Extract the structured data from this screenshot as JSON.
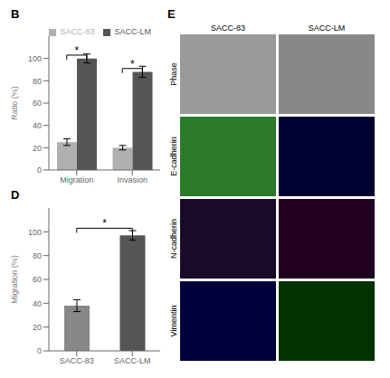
{
  "chart_data": [
    {
      "type": "bar",
      "title": "B",
      "categories": [
        "Migration",
        "Invasion"
      ],
      "series": [
        {
          "name": "SACC-83",
          "color": "#b0b0b0",
          "values": [
            25,
            20
          ],
          "errors": [
            3,
            2
          ]
        },
        {
          "name": "SACC-LM",
          "color": "#555555",
          "values": [
            100,
            88
          ],
          "errors": [
            4,
            5
          ]
        }
      ],
      "ylabel": "Ratio (%)",
      "ylim": [
        0,
        120
      ],
      "yticks": [
        0,
        20,
        40,
        60,
        80,
        100
      ],
      "legend": "upper right",
      "grid": false,
      "annotations": [
        {
          "text": "*",
          "category": "Migration",
          "y": 103
        },
        {
          "text": "*",
          "category": "Invasion",
          "y": 91
        }
      ]
    },
    {
      "type": "bar",
      "title": "D",
      "categories": [
        "SACC-83",
        "SACC-LM"
      ],
      "values": [
        38,
        97
      ],
      "errors": [
        5,
        4
      ],
      "colors": [
        "#888888",
        "#555555"
      ],
      "ylabel": "Migration (%)",
      "ylim": [
        0,
        120
      ],
      "yticks": [
        0,
        20,
        40,
        60,
        80,
        100
      ],
      "grid": false,
      "annotations": [
        {
          "text": "*",
          "from": "SACC-83",
          "to": "SACC-LM",
          "y": 103
        }
      ]
    },
    {
      "type": "image_grid",
      "title": "E",
      "row_labels": [
        "Phase",
        "E-cadherin",
        "N-cadherin",
        "Vimentin"
      ],
      "col_labels": [
        "SACC-83",
        "SACC-LM"
      ],
      "colors": [
        [
          "#9a9a9a",
          "#888888"
        ],
        [
          "#2a7a2a",
          "#000033"
        ],
        [
          "#1a0a2a",
          "#220022"
        ],
        [
          "#00003a",
          "#003300"
        ]
      ]
    }
  ]
}
